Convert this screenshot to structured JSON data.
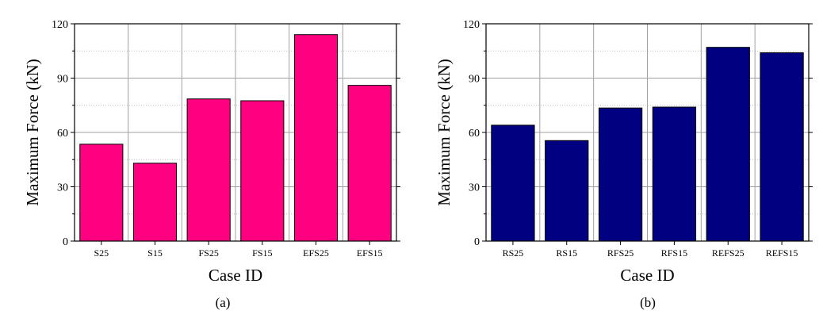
{
  "chart_data": [
    {
      "type": "bar",
      "panel_label": "(a)",
      "categories": [
        "S25",
        "S15",
        "FS25",
        "FS15",
        "EFS25",
        "EFS15"
      ],
      "values": [
        53.5,
        43,
        78.5,
        77.5,
        114,
        86
      ],
      "xlabel": "Case ID",
      "ylabel": "Maximum Force (kN)",
      "ylim": [
        0,
        120
      ],
      "yticks": [
        0,
        30,
        60,
        90,
        120
      ],
      "grid": true,
      "bar_color": "#ff0080"
    },
    {
      "type": "bar",
      "panel_label": "(b)",
      "categories": [
        "RS25",
        "RS15",
        "RFS25",
        "RFS15",
        "REFS25",
        "REFS15"
      ],
      "values": [
        64,
        55.5,
        73.5,
        74,
        107,
        104
      ],
      "xlabel": "Case ID",
      "ylabel": "Maximum Force (kN)",
      "ylim": [
        0,
        120
      ],
      "yticks": [
        0,
        30,
        60,
        90,
        120
      ],
      "grid": true,
      "bar_color": "#000080"
    }
  ]
}
